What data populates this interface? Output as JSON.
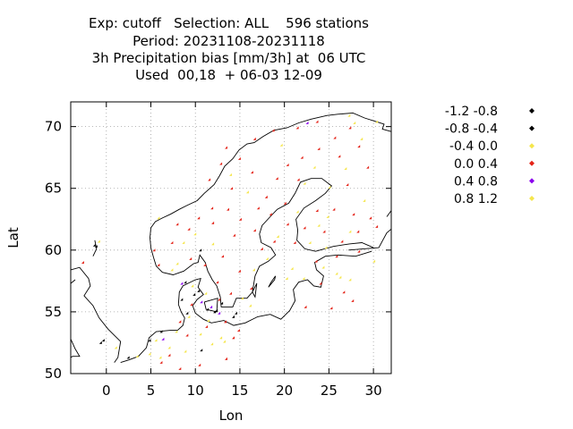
{
  "header": {
    "title_lines": [
      "Exp: cutoff   Selection: ALL    596 stations",
      "Period: 20231108-20231118",
      "3h Precipitation bias [mm/3h] at  06 UTC",
      "Used  00,18  + 06-03 12-09"
    ]
  },
  "chart_data": {
    "type": "scatter",
    "title": "Exp: cutoff   Selection: ALL    596 stations",
    "xlabel": "Lon",
    "ylabel": "Lat",
    "xlim": [
      -4,
      32
    ],
    "ylim": [
      50,
      72
    ],
    "x_ticks": [
      0,
      5,
      10,
      15,
      20,
      25,
      30
    ],
    "y_ticks": [
      50,
      55,
      60,
      65,
      70
    ],
    "grid": true,
    "legend_position": "right",
    "series": [
      {
        "name": "-1.2 -0.8",
        "color": "#000000",
        "points": [
          [
            -1.2,
            60.3
          ],
          [
            10.0,
            56.3
          ],
          [
            10.7,
            59.9
          ],
          [
            12.5,
            55.0
          ],
          [
            9.2,
            54.8
          ],
          [
            14.7,
            54.8
          ],
          [
            -0.5,
            52.4
          ],
          [
            10.5,
            56.6
          ],
          [
            8.6,
            55.9
          ]
        ]
      },
      {
        "name": "-0.8 -0.4",
        "color": "#000000",
        "points": [
          [
            -1.0,
            60.2
          ],
          [
            9.0,
            57.3
          ],
          [
            11.5,
            55.1
          ],
          [
            13.1,
            55.6
          ],
          [
            6.3,
            53.3
          ],
          [
            12.3,
            54.9
          ],
          [
            10.8,
            51.8
          ],
          [
            14.4,
            54.5
          ],
          [
            -0.2,
            52.6
          ],
          [
            5.0,
            52.6
          ],
          [
            2.6,
            51.2
          ]
        ]
      },
      {
        "name": "-0.4 0.0",
        "color": "#f5e64c",
        "points": [
          [
            -0.7,
            60.6
          ],
          [
            1.2,
            52.0
          ],
          [
            5.0,
            51.5
          ],
          [
            7.2,
            52.0
          ],
          [
            8.0,
            53.3
          ],
          [
            10.7,
            53.1
          ],
          [
            12.0,
            52.3
          ],
          [
            15.4,
            56.0
          ],
          [
            18.2,
            59.2
          ],
          [
            19.4,
            61.0
          ],
          [
            21.6,
            63.0
          ],
          [
            22.4,
            65.3
          ],
          [
            23.5,
            66.6
          ],
          [
            25.2,
            65.0
          ],
          [
            27.0,
            66.5
          ],
          [
            28.0,
            70.2
          ],
          [
            30.5,
            70.3
          ],
          [
            24.5,
            58.5
          ],
          [
            26.0,
            58.0
          ],
          [
            27.5,
            57.5
          ],
          [
            22.3,
            57.6
          ],
          [
            23.0,
            60.5
          ],
          [
            24.8,
            60.1
          ],
          [
            29.1,
            63.9
          ],
          [
            24.0,
            61.9
          ],
          [
            27.5,
            61.4
          ],
          [
            30.2,
            59.0
          ],
          [
            9.8,
            57.0
          ],
          [
            11.3,
            56.4
          ],
          [
            7.5,
            58.3
          ],
          [
            10.1,
            61.2
          ],
          [
            12.1,
            60.4
          ],
          [
            19.8,
            68.4
          ],
          [
            16.0,
            64.6
          ],
          [
            6.0,
            62.5
          ],
          [
            3.6,
            51.3
          ],
          [
            5.7,
            52.6
          ],
          [
            13.4,
            52.5
          ],
          [
            16.7,
            58.3
          ],
          [
            20.4,
            57.6
          ],
          [
            8.8,
            60.5
          ],
          [
            14.1,
            66.0
          ]
        ]
      },
      {
        "name": "0.0 0.4",
        "color": "#e42318",
        "points": [
          [
            -2.5,
            58.9
          ],
          [
            6.0,
            58.7
          ],
          [
            5.5,
            59.9
          ],
          [
            7.5,
            60.5
          ],
          [
            9.4,
            61.6
          ],
          [
            10.5,
            62.5
          ],
          [
            12.0,
            63.3
          ],
          [
            13.8,
            63.2
          ],
          [
            15.2,
            62.4
          ],
          [
            16.8,
            61.5
          ],
          [
            17.6,
            60.0
          ],
          [
            14.5,
            61.1
          ],
          [
            13.2,
            59.4
          ],
          [
            15.1,
            58.2
          ],
          [
            12.6,
            57.3
          ],
          [
            14.1,
            56.4
          ],
          [
            12.8,
            55.9
          ],
          [
            9.7,
            55.5
          ],
          [
            8.4,
            54.1
          ],
          [
            9.2,
            53.0
          ],
          [
            11.4,
            53.7
          ],
          [
            13.5,
            54.1
          ],
          [
            15.0,
            53.4
          ],
          [
            7.2,
            51.4
          ],
          [
            6.3,
            50.8
          ],
          [
            8.4,
            50.3
          ],
          [
            10.6,
            50.6
          ],
          [
            13.6,
            51.1
          ],
          [
            14.4,
            52.8
          ],
          [
            17.2,
            63.3
          ],
          [
            18.1,
            64.2
          ],
          [
            19.3,
            65.7
          ],
          [
            20.5,
            66.8
          ],
          [
            22.1,
            67.4
          ],
          [
            24.0,
            68.1
          ],
          [
            25.8,
            69.0
          ],
          [
            27.5,
            69.8
          ],
          [
            26.3,
            67.5
          ],
          [
            28.5,
            68.3
          ],
          [
            29.5,
            66.6
          ],
          [
            27.2,
            65.2
          ],
          [
            25.7,
            63.2
          ],
          [
            27.9,
            62.8
          ],
          [
            29.8,
            62.5
          ],
          [
            28.4,
            61.4
          ],
          [
            26.6,
            60.6
          ],
          [
            24.6,
            61.4
          ],
          [
            22.4,
            61.7
          ],
          [
            21.3,
            60.5
          ],
          [
            20.2,
            63.7
          ],
          [
            18.6,
            62.8
          ],
          [
            16.5,
            66.2
          ],
          [
            15.1,
            67.3
          ],
          [
            13.6,
            68.2
          ],
          [
            16.8,
            68.9
          ],
          [
            18.9,
            69.6
          ],
          [
            21.6,
            69.8
          ],
          [
            23.8,
            70.3
          ],
          [
            21.7,
            65.6
          ],
          [
            20.5,
            62.0
          ],
          [
            23.8,
            63.1
          ],
          [
            30.5,
            61.8
          ],
          [
            24.2,
            57.2
          ],
          [
            26.8,
            56.5
          ],
          [
            25.4,
            55.2
          ],
          [
            27.8,
            55.8
          ],
          [
            22.5,
            55.3
          ],
          [
            23.7,
            59.0
          ],
          [
            26.0,
            59.4
          ],
          [
            28.5,
            59.8
          ],
          [
            19.0,
            60.6
          ],
          [
            11.2,
            58.7
          ],
          [
            16.4,
            56.8
          ],
          [
            9.6,
            59.2
          ],
          [
            8.1,
            62.0
          ],
          [
            12.1,
            62.1
          ],
          [
            14.2,
            64.9
          ],
          [
            11.7,
            65.6
          ],
          [
            13.0,
            66.9
          ]
        ]
      },
      {
        "name": "0.4 0.8",
        "color": "#8b00ee",
        "points": [
          [
            6.5,
            52.7
          ],
          [
            10.8,
            55.7
          ],
          [
            12.8,
            54.8
          ],
          [
            8.6,
            57.2
          ],
          [
            11.9,
            55.3
          ],
          [
            22.7,
            70.2
          ]
        ]
      },
      {
        "name": "0.8 1.2",
        "color": "#f5e64c",
        "points": [
          [
            6.2,
            51.2
          ],
          [
            9.0,
            51.7
          ],
          [
            9.4,
            54.5
          ],
          [
            11.6,
            54.2
          ],
          [
            8.1,
            58.8
          ],
          [
            21.0,
            58.4
          ],
          [
            26.4,
            57.7
          ],
          [
            27.4,
            70.8
          ],
          [
            28.8,
            68.9
          ],
          [
            25.0,
            62.6
          ],
          [
            16.3,
            55.4
          ],
          [
            13.0,
            52.8
          ]
        ]
      }
    ]
  },
  "legend": {
    "entries": [
      {
        "label": "-1.2 -0.8",
        "color": "#000000"
      },
      {
        "label": "-0.8 -0.4",
        "color": "#000000"
      },
      {
        "label": "-0.4 0.0",
        "color": "#f5e64c"
      },
      {
        "label": "0.0 0.4",
        "color": "#e42318"
      },
      {
        "label": "0.4 0.8",
        "color": "#8b00ee"
      },
      {
        "label": "0.8 1.2",
        "color": "#f5e64c"
      }
    ]
  }
}
